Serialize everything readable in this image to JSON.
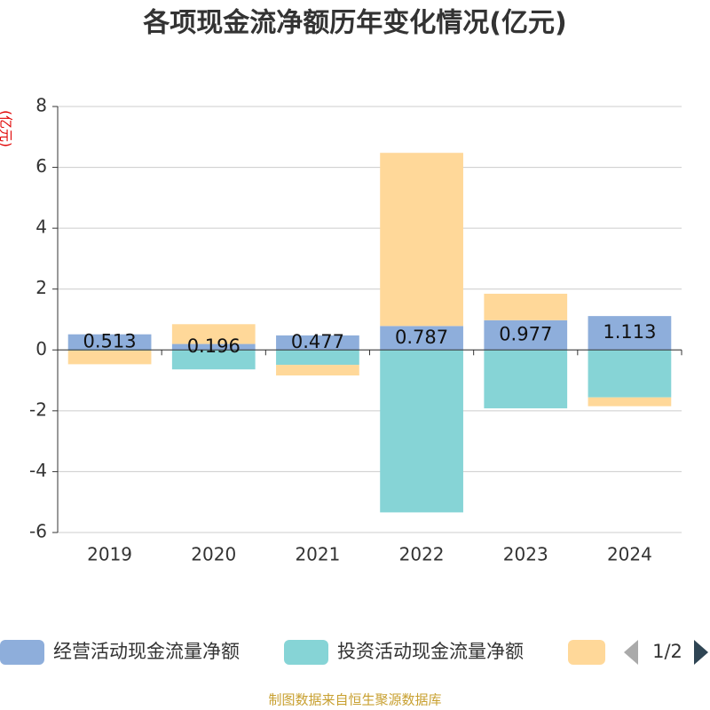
{
  "chart_data": {
    "type": "bar",
    "stacked": true,
    "title": "各项现金流净额历年变化情况(亿元)",
    "y_label": "(亿元)",
    "source": "制图数据来自恒生聚源数据库",
    "legend_page": "1/2",
    "categories": [
      "2019",
      "2020",
      "2021",
      "2022",
      "2023",
      "2024"
    ],
    "series": [
      {
        "name": "经营活动现金流量净额",
        "color": "#8eaedb",
        "values": [
          0.513,
          0.196,
          0.477,
          0.787,
          0.977,
          1.113
        ],
        "show_labels": true
      },
      {
        "name": "投资活动现金流量净额",
        "color": "#86d4d6",
        "values": [
          -0.02,
          -0.64,
          -0.49,
          -5.34,
          -1.92,
          -1.56
        ]
      },
      {
        "color": "#ffd899",
        "values": [
          -0.45,
          0.65,
          -0.35,
          5.69,
          0.87,
          -0.29
        ]
      }
    ],
    "ylim": [
      -6,
      8
    ],
    "yticks": [
      -6,
      -4,
      -2,
      0,
      2,
      4,
      6,
      8
    ],
    "grid": true
  }
}
